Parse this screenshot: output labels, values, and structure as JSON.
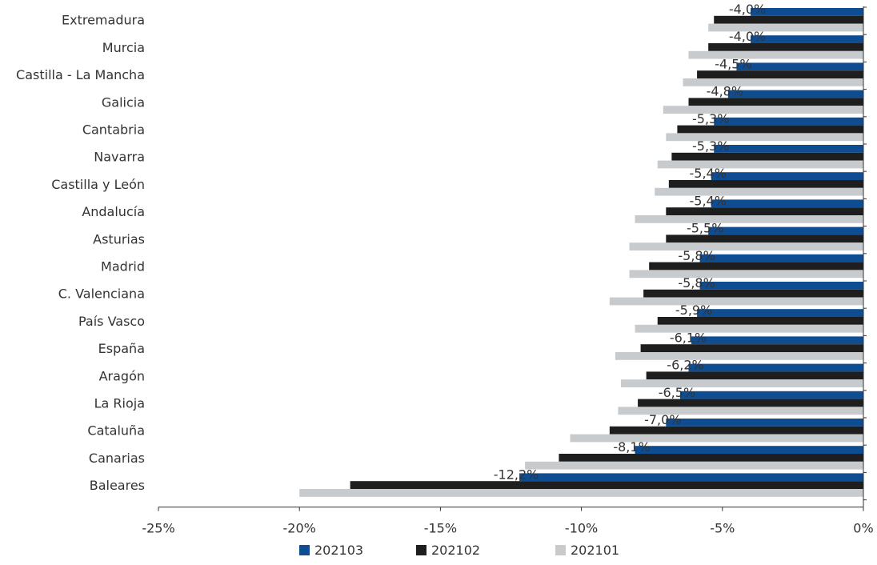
{
  "chart_data": {
    "type": "bar",
    "orientation": "horizontal",
    "categories": [
      "Extremadura",
      "Murcia",
      "Castilla - La Mancha",
      "Galicia",
      "Cantabria",
      "Navarra",
      "Castilla y León",
      "Andalucía",
      "Asturias",
      "Madrid",
      "C. Valenciana",
      "País Vasco",
      "España",
      "Aragón",
      "La Rioja",
      "Cataluña",
      "Canarias",
      "Baleares"
    ],
    "series": [
      {
        "name": "202103",
        "color": "#0f4d92",
        "values": [
          -4.0,
          -4.0,
          -4.5,
          -4.8,
          -5.3,
          -5.3,
          -5.4,
          -5.4,
          -5.5,
          -5.8,
          -5.8,
          -5.9,
          -6.1,
          -6.2,
          -6.5,
          -7.0,
          -8.1,
          -12.2
        ]
      },
      {
        "name": "202102",
        "color": "#1e1e1e",
        "values": [
          -5.3,
          -5.5,
          -5.9,
          -6.2,
          -6.6,
          -6.8,
          -6.9,
          -7.0,
          -7.0,
          -7.6,
          -7.8,
          -7.3,
          -7.9,
          -7.7,
          -8.0,
          -9.0,
          -10.8,
          -18.2
        ]
      },
      {
        "name": "202101",
        "color": "#c8cbce",
        "values": [
          -5.5,
          -6.2,
          -6.4,
          -7.1,
          -7.0,
          -7.3,
          -7.4,
          -8.1,
          -8.3,
          -8.3,
          -9.0,
          -8.1,
          -8.8,
          -8.6,
          -8.7,
          -10.4,
          -12.0,
          -20.0
        ]
      }
    ],
    "data_labels": [
      "-4,0%",
      "-4,0%",
      "-4,5%",
      "-4,8%",
      "-5,3%",
      "-5,3%",
      "-5,4%",
      "-5,4%",
      "-5,5%",
      "-5,8%",
      "-5,8%",
      "-5,9%",
      "-6,1%",
      "-6,2%",
      "-6,5%",
      "-7,0%",
      "-8,1%",
      "-12,2%"
    ],
    "x_ticks": [
      -25,
      -20,
      -15,
      -10,
      -5,
      0
    ],
    "x_tick_labels": [
      "-25%",
      "-20%",
      "-15%",
      "-10%",
      "-5%",
      "0%"
    ],
    "xlim": [
      -25,
      0
    ],
    "grid": false,
    "legend_position": "bottom",
    "title": "",
    "xlabel": "",
    "ylabel": ""
  }
}
